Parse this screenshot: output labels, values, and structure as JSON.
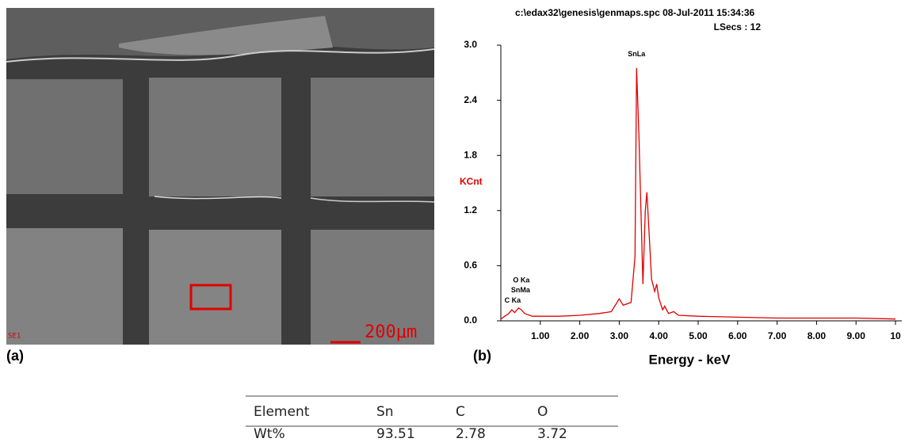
{
  "panel_labels": {
    "a": "(a)",
    "b": "(b)"
  },
  "sem": {
    "mode": "SE1",
    "scale": "200μm"
  },
  "chart_data": {
    "type": "line",
    "title": "c:\\edax32\\genesis\\genmaps.spc  08-Jul-2011 15:34:36",
    "subtitle": "LSecs : 12",
    "x_label": "Energy - keV",
    "y_label": "KCnt",
    "color": "#e00000",
    "x": [
      0,
      0.1,
      0.2,
      0.28,
      0.35,
      0.45,
      0.52,
      0.6,
      0.8,
      1.0,
      1.5,
      2.0,
      2.5,
      2.8,
      3.0,
      3.1,
      3.3,
      3.4,
      3.44,
      3.5,
      3.6,
      3.66,
      3.7,
      3.75,
      3.82,
      3.9,
      3.95,
      4.0,
      4.1,
      4.15,
      4.25,
      4.38,
      4.5,
      5.0,
      6.0,
      7.0,
      8.0,
      9.0,
      10.0
    ],
    "values": [
      0.02,
      0.05,
      0.08,
      0.12,
      0.09,
      0.14,
      0.12,
      0.08,
      0.05,
      0.05,
      0.05,
      0.06,
      0.08,
      0.1,
      0.24,
      0.17,
      0.2,
      0.7,
      2.75,
      2.0,
      0.4,
      1.2,
      1.4,
      1.0,
      0.45,
      0.32,
      0.4,
      0.25,
      0.12,
      0.16,
      0.08,
      0.1,
      0.06,
      0.05,
      0.04,
      0.03,
      0.03,
      0.03,
      0.02
    ],
    "xlim": [
      0,
      10
    ],
    "ylim": [
      0,
      3
    ],
    "xticks": [
      {
        "value": 1,
        "label": "1.00"
      },
      {
        "value": 2,
        "label": "2.00"
      },
      {
        "value": 3,
        "label": "3.00"
      },
      {
        "value": 4,
        "label": "4.00"
      },
      {
        "value": 5,
        "label": "5.00"
      },
      {
        "value": 6,
        "label": "6.00"
      },
      {
        "value": 7,
        "label": "7.00"
      },
      {
        "value": 8,
        "label": "8.00"
      },
      {
        "value": 9,
        "label": "9.00"
      },
      10
    ],
    "yticks": [
      {
        "value": 0,
        "label": "0.0"
      },
      0.6,
      1.2,
      1.8,
      2.4,
      {
        "value": 3,
        "label": "3.0"
      }
    ],
    "annotations": [
      {
        "text": "SnLa",
        "x": 3.44,
        "y": 2.9
      },
      {
        "text": "O Ka",
        "x": 0.52,
        "y": 0.44
      },
      {
        "text": "SnMa",
        "x": 0.5,
        "y": 0.33
      },
      {
        "text": "C Ka",
        "x": 0.3,
        "y": 0.22
      }
    ]
  },
  "table": {
    "header": [
      "Element",
      "Sn",
      "C",
      "O"
    ],
    "rows": [
      [
        "Wt%",
        "93.51",
        "2.78",
        "3.72"
      ]
    ]
  }
}
